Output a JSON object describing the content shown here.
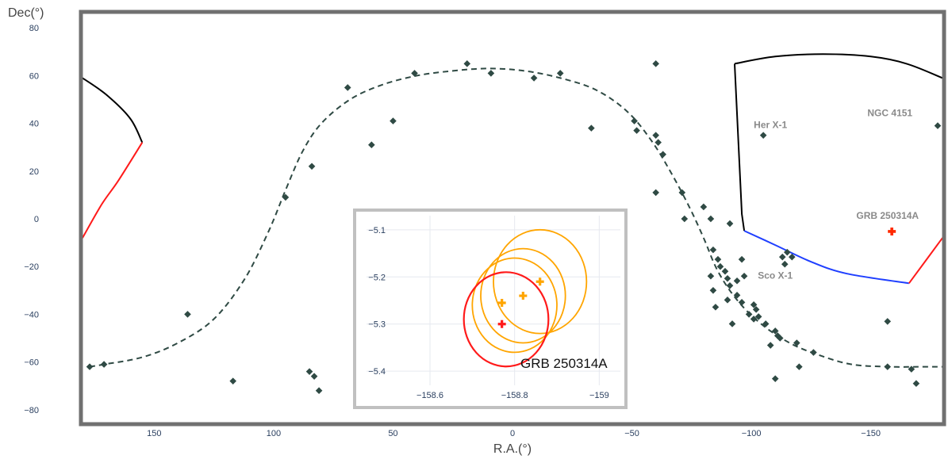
{
  "chart_data": [
    {
      "type": "scatter",
      "projection": "sky map, R.A. axis reversed",
      "xlabel": "R.A.(°)",
      "ylabel": "Dec(°)",
      "xlim": [
        180,
        -180
      ],
      "ylim": [
        -90,
        90
      ],
      "x_ticks": [
        150,
        100,
        50,
        0,
        -50,
        -100,
        -150
      ],
      "x_tick_labels": [
        "150",
        "100",
        "50",
        "0",
        "−50",
        "−100",
        "−150"
      ],
      "y_ticks": [
        80,
        60,
        40,
        20,
        0,
        -20,
        -40,
        -60,
        -80
      ],
      "y_tick_labels": [
        "80",
        "60",
        "40",
        "20",
        "0",
        "−20",
        "−40",
        "−60",
        "−80"
      ],
      "grid": false,
      "colors": {
        "sources": "#2f4a44",
        "galactic_plane": "#2f4a44",
        "fov_black": "#000000",
        "fov_red": "#ff1a1a",
        "fov_blue": "#1f3fff",
        "grb": "#ff2a00",
        "frame": "#707070"
      },
      "sources": [
        {
          "x": 177,
          "y": -62
        },
        {
          "x": 171,
          "y": -61
        },
        {
          "x": 136,
          "y": -40
        },
        {
          "x": 117,
          "y": -68
        },
        {
          "x": 95,
          "y": 9
        },
        {
          "x": 85,
          "y": -64
        },
        {
          "x": 83,
          "y": -66
        },
        {
          "x": 84,
          "y": 22
        },
        {
          "x": 81,
          "y": -72
        },
        {
          "x": 69,
          "y": 55
        },
        {
          "x": 59,
          "y": 31
        },
        {
          "x": 50,
          "y": 41
        },
        {
          "x": 41,
          "y": 61
        },
        {
          "x": 19,
          "y": 65
        },
        {
          "x": 9,
          "y": 61
        },
        {
          "x": -9,
          "y": 59
        },
        {
          "x": -20,
          "y": 61
        },
        {
          "x": -33,
          "y": 38
        },
        {
          "x": -51,
          "y": 41
        },
        {
          "x": -52,
          "y": 37
        },
        {
          "x": -60,
          "y": 65
        },
        {
          "x": -60,
          "y": 35
        },
        {
          "x": -61,
          "y": 32
        },
        {
          "x": -63,
          "y": 27
        },
        {
          "x": -60,
          "y": 11
        },
        {
          "x": -71,
          "y": 11
        },
        {
          "x": -72,
          "y": 0
        },
        {
          "x": -80,
          "y": 5
        },
        {
          "x": -83,
          "y": 0
        },
        {
          "x": -91,
          "y": -2
        },
        {
          "x": -84,
          "y": -13
        },
        {
          "x": -86,
          "y": -17
        },
        {
          "x": -87,
          "y": -20
        },
        {
          "x": -83,
          "y": -24
        },
        {
          "x": -89,
          "y": -22
        },
        {
          "x": -90,
          "y": -25
        },
        {
          "x": -91,
          "y": -28
        },
        {
          "x": -96,
          "y": -17
        },
        {
          "x": -94,
          "y": -26
        },
        {
          "x": -97,
          "y": -24
        },
        {
          "x": -84,
          "y": -30
        },
        {
          "x": -90,
          "y": -34
        },
        {
          "x": -94,
          "y": -32
        },
        {
          "x": -85,
          "y": -37
        },
        {
          "x": -96,
          "y": -35
        },
        {
          "x": -92,
          "y": -44
        },
        {
          "x": -99,
          "y": -40
        },
        {
          "x": -101,
          "y": -36
        },
        {
          "x": -102,
          "y": -38
        },
        {
          "x": -103,
          "y": -41
        },
        {
          "x": -101,
          "y": -42
        },
        {
          "x": -106,
          "y": -44
        },
        {
          "x": -108,
          "y": -53
        },
        {
          "x": -110,
          "y": -47
        },
        {
          "x": -111,
          "y": -49
        },
        {
          "x": -112,
          "y": -50
        },
        {
          "x": -115,
          "y": -14
        },
        {
          "x": -113,
          "y": -16
        },
        {
          "x": -114,
          "y": -19
        },
        {
          "x": -117,
          "y": -16
        },
        {
          "x": -119,
          "y": -52
        },
        {
          "x": -120,
          "y": -62
        },
        {
          "x": -126,
          "y": -56
        },
        {
          "x": -110,
          "y": -67
        },
        {
          "x": -157,
          "y": -43
        },
        {
          "x": -157,
          "y": -62
        },
        {
          "x": -167,
          "y": -63
        },
        {
          "x": -169,
          "y": -69
        },
        {
          "x": -178,
          "y": 39
        },
        {
          "x": -105,
          "y": 35
        }
      ],
      "galactic_plane": [
        {
          "x": 177,
          "y": -62
        },
        {
          "x": 171,
          "y": -61
        },
        {
          "x": 155,
          "y": -58
        },
        {
          "x": 140,
          "y": -52
        },
        {
          "x": 125,
          "y": -42
        },
        {
          "x": 112,
          "y": -25
        },
        {
          "x": 102,
          "y": -5
        },
        {
          "x": 95,
          "y": 12
        },
        {
          "x": 88,
          "y": 28
        },
        {
          "x": 80,
          "y": 40
        },
        {
          "x": 68,
          "y": 50
        },
        {
          "x": 55,
          "y": 56
        },
        {
          "x": 40,
          "y": 60
        },
        {
          "x": 25,
          "y": 62
        },
        {
          "x": 10,
          "y": 63
        },
        {
          "x": -5,
          "y": 62
        },
        {
          "x": -20,
          "y": 59
        },
        {
          "x": -35,
          "y": 54
        },
        {
          "x": -48,
          "y": 45
        },
        {
          "x": -58,
          "y": 33
        },
        {
          "x": -66,
          "y": 20
        },
        {
          "x": -74,
          "y": 5
        },
        {
          "x": -80,
          "y": -8
        },
        {
          "x": -86,
          "y": -22
        },
        {
          "x": -94,
          "y": -34
        },
        {
          "x": -104,
          "y": -44
        },
        {
          "x": -116,
          "y": -52
        },
        {
          "x": -128,
          "y": -57
        },
        {
          "x": -142,
          "y": -61
        },
        {
          "x": -158,
          "y": -62
        },
        {
          "x": -172,
          "y": -62
        },
        {
          "x": -180,
          "y": -62
        }
      ],
      "fov_regions": [
        {
          "black": [
            [
              -93,
              65
            ],
            [
              -110,
              68
            ],
            [
              -130,
              69
            ],
            [
              -150,
              68
            ],
            [
              -165,
              65
            ],
            [
              -180,
              59
            ]
          ],
          "black_side": [
            [
              -93,
              65
            ],
            [
              -96,
              2
            ],
            [
              -97,
              -5
            ]
          ],
          "blue": [
            [
              -97,
              -5
            ],
            [
              -110,
              -11
            ],
            [
              -125,
              -18
            ],
            [
              -140,
              -23
            ],
            [
              -166,
              -27
            ]
          ],
          "red": [
            [
              -166,
              -27
            ],
            [
              -180,
              -8
            ]
          ]
        },
        {
          "black": [
            [
              180,
              59
            ],
            [
              170,
              52
            ],
            [
              160,
              42
            ],
            [
              155,
              32
            ]
          ],
          "red": [
            [
              155,
              32
            ],
            [
              165,
              16
            ],
            [
              172,
              6
            ],
            [
              180,
              -8
            ]
          ]
        }
      ],
      "grb": {
        "x": -158.8,
        "y": -5.3,
        "label": "GRB 250314A"
      },
      "labels": [
        {
          "text": "Her X-1",
          "x": -108,
          "y": 38
        },
        {
          "text": "NGC 4151",
          "x": -158,
          "y": 43
        },
        {
          "text": "Sco X-1",
          "x": -110,
          "y": -25
        },
        {
          "text": "GRB 250314A",
          "x": -157,
          "y": 0
        }
      ]
    },
    {
      "type": "scatter",
      "title": "GRB 250314A",
      "xlim": [
        -158.45,
        -159.05
      ],
      "ylim": [
        -5.43,
        -5.07
      ],
      "x_ticks": [
        -158.6,
        -158.8,
        -159
      ],
      "x_tick_labels": [
        "−158.6",
        "−158.8",
        "−159"
      ],
      "y_ticks": [
        -5.1,
        -5.2,
        -5.3,
        -5.4
      ],
      "y_tick_labels": [
        "−5.1",
        "−5.2",
        "−5.3",
        "−5.4"
      ],
      "grid": true,
      "colors": {
        "orange": "#ffa500",
        "red": "#ff1a1a",
        "frame": "#c0c0c0"
      },
      "circles": [
        {
          "cx": -158.82,
          "cy": -5.24,
          "r": 0.1,
          "color": "orange"
        },
        {
          "cx": -158.86,
          "cy": -5.21,
          "r": 0.11,
          "color": "orange"
        },
        {
          "cx": -158.8,
          "cy": -5.26,
          "r": 0.1,
          "color": "orange"
        },
        {
          "cx": -158.78,
          "cy": -5.29,
          "r": 0.1,
          "color": "red"
        }
      ],
      "markers": [
        {
          "x": -158.77,
          "y": -5.255,
          "color": "orange"
        },
        {
          "x": -158.82,
          "y": -5.24,
          "color": "orange"
        },
        {
          "x": -158.86,
          "y": -5.21,
          "color": "orange"
        },
        {
          "x": -158.77,
          "y": -5.3,
          "color": "red"
        }
      ]
    }
  ]
}
